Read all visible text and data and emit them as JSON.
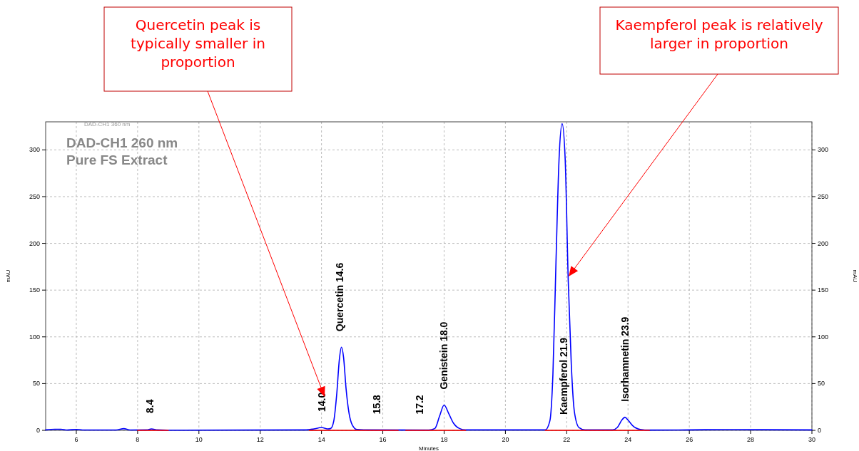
{
  "chart_data": {
    "type": "line",
    "title": "DAD-CH1 260 nm",
    "subtitle": "Pure FS Extract",
    "xlabel": "Minutes",
    "ylabel": "mAU",
    "y2label": "mAU",
    "xlim": [
      5,
      30
    ],
    "xticks": [
      6,
      8,
      10,
      12,
      14,
      16,
      18,
      20,
      22,
      24,
      26,
      28,
      30
    ],
    "ylim": [
      0,
      330
    ],
    "yticks": [
      0,
      50,
      100,
      150,
      200,
      250,
      300
    ],
    "y2lim": [
      0,
      330
    ],
    "y2ticks": [
      0,
      50,
      100,
      150,
      200,
      250,
      300
    ],
    "grid": true,
    "marker": "none",
    "line_style": "solid",
    "series": [
      {
        "type": "line",
        "color": "#0000ff",
        "x": [
          5,
          5.3,
          5.5,
          5.7,
          6.0,
          6.2,
          7.3,
          7.55,
          7.75,
          8.3,
          8.45,
          8.65,
          9.0,
          13.5,
          13.75,
          14.0,
          14.2,
          14.3,
          14.4,
          14.5,
          14.58,
          14.65,
          14.72,
          14.8,
          14.9,
          15.0,
          15.15,
          15.5,
          17.5,
          17.7,
          17.85,
          18.0,
          18.15,
          18.3,
          18.5,
          18.7,
          21.3,
          21.45,
          21.55,
          21.65,
          21.75,
          21.85,
          21.95,
          22.05,
          22.15,
          22.25,
          22.4,
          22.6,
          23.5,
          23.65,
          23.8,
          23.9,
          24.0,
          24.15,
          24.4,
          24.7,
          26,
          27.4,
          28.4,
          30
        ],
        "values": [
          0.5,
          1.2,
          1.2,
          0.4,
          1,
          0.4,
          0.4,
          1.8,
          0.4,
          0.5,
          1.5,
          0.5,
          0.2,
          0.5,
          1.5,
          3,
          1.5,
          2,
          10,
          40,
          75,
          89,
          78,
          45,
          18,
          6,
          1,
          0.5,
          0.3,
          2,
          15,
          27,
          18,
          8,
          2,
          0.5,
          0.5,
          10,
          60,
          180,
          290,
          328,
          290,
          160,
          70,
          20,
          3,
          0.5,
          0.5,
          3,
          11,
          14,
          11,
          5,
          1,
          0.3,
          0.5,
          0.8,
          0.7,
          0.5
        ]
      },
      {
        "type": "line",
        "color": "#ff0000",
        "x": [
          8.0,
          9.0,
          9.01,
          13.6,
          16.5,
          16.51,
          16.75,
          18.7,
          18.71,
          21.3,
          24.7
        ],
        "values": [
          0,
          0,
          null,
          0,
          0,
          null,
          0,
          0,
          null,
          0,
          0
        ]
      }
    ],
    "annotations": [
      "DAD-CH1 360 nm",
      {
        "text": "8.4",
        "x": 8.4,
        "y": 1.5
      },
      {
        "text": "14.0",
        "x": 14.0,
        "y": 3
      },
      {
        "text": "Quercetin 14.6",
        "x": 14.6,
        "y": 89
      },
      {
        "text": "15.8",
        "x": 15.8,
        "y": 0.5
      },
      {
        "text": "17.2",
        "x": 17.2,
        "y": 0.3
      },
      {
        "text": "Genistein 18.0",
        "x": 18.0,
        "y": 27
      },
      {
        "text": "Kaempferol 21.9",
        "x": 21.9,
        "y": 0
      },
      {
        "text": "Isorhamnetin 23.9",
        "x": 23.9,
        "y": 14
      },
      "Quercetin peak is typically smaller in proportion",
      "Kaempferol peak is relatively larger in proportion"
    ]
  }
}
